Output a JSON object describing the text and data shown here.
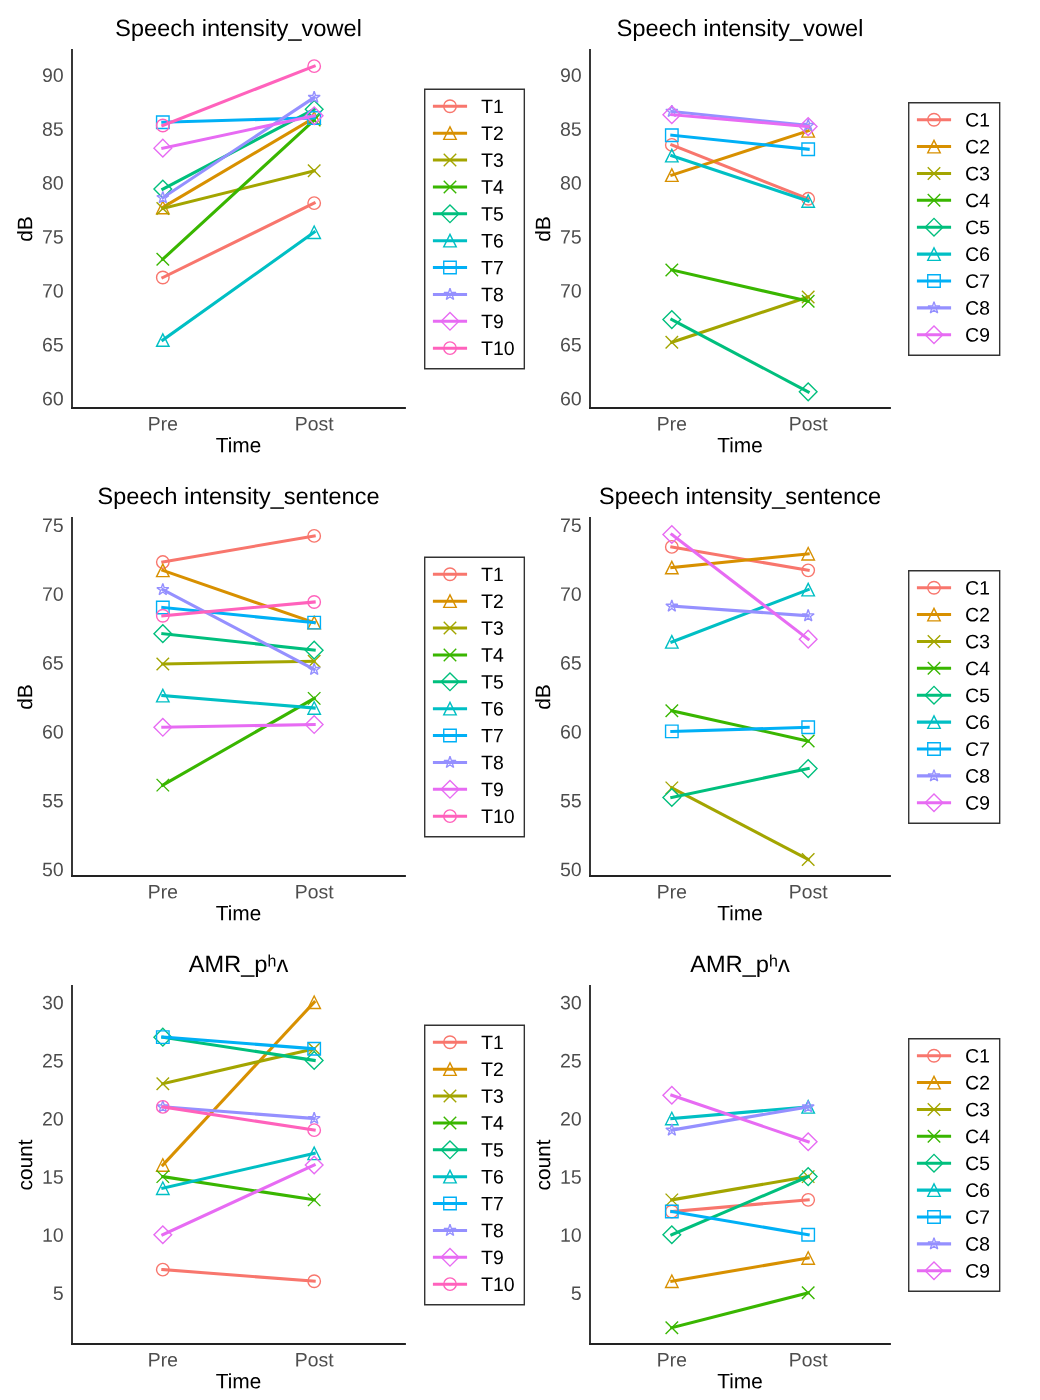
{
  "chart_data": [
    {
      "type": "line",
      "title": "Speech intensity_vowel",
      "xlabel": "Time",
      "ylabel": "dB",
      "categories": [
        "Pre",
        "Post"
      ],
      "ylim": [
        59.1,
        92.3
      ],
      "yticks": [
        60,
        65,
        70,
        75,
        80,
        85,
        90
      ],
      "grid": false,
      "legend": "right",
      "line_style": "solid",
      "series": [
        {
          "name": "T1",
          "color": "#f8766d",
          "marker": "circle",
          "values": [
            71.2,
            78.1
          ]
        },
        {
          "name": "T2",
          "color": "#d89000",
          "marker": "triangle",
          "values": [
            77.7,
            86.0
          ]
        },
        {
          "name": "T3",
          "color": "#a3a500",
          "marker": "cross",
          "values": [
            77.6,
            81.1
          ]
        },
        {
          "name": "T4",
          "color": "#39b600",
          "marker": "cross",
          "values": [
            72.9,
            85.8
          ]
        },
        {
          "name": "T5",
          "color": "#00bf7d",
          "marker": "diamond",
          "values": [
            79.4,
            86.8
          ]
        },
        {
          "name": "T6",
          "color": "#00bfc4",
          "marker": "triangle",
          "values": [
            65.4,
            75.4
          ]
        },
        {
          "name": "T7",
          "color": "#00b0f6",
          "marker": "square",
          "values": [
            85.6,
            86.0
          ]
        },
        {
          "name": "T8",
          "color": "#9590ff",
          "marker": "star",
          "values": [
            78.6,
            87.9
          ]
        },
        {
          "name": "T9",
          "color": "#e76bf3",
          "marker": "diamond",
          "values": [
            83.2,
            86.2
          ]
        },
        {
          "name": "T10",
          "color": "#ff62bc",
          "marker": "circle",
          "values": [
            85.3,
            90.8
          ]
        }
      ]
    },
    {
      "type": "line",
      "title": "Speech intensity_vowel",
      "xlabel": "Time",
      "ylabel": "dB",
      "categories": [
        "Pre",
        "Post"
      ],
      "ylim": [
        59.1,
        92.3
      ],
      "yticks": [
        60,
        65,
        70,
        75,
        80,
        85,
        90
      ],
      "grid": false,
      "legend": "right",
      "line_style": "solid",
      "series": [
        {
          "name": "C1",
          "color": "#f8766d",
          "marker": "circle",
          "values": [
            83.5,
            78.5
          ]
        },
        {
          "name": "C2",
          "color": "#d89000",
          "marker": "triangle",
          "values": [
            80.7,
            84.8
          ]
        },
        {
          "name": "C3",
          "color": "#a3a500",
          "marker": "cross",
          "values": [
            65.2,
            69.4
          ]
        },
        {
          "name": "C4",
          "color": "#39b600",
          "marker": "cross",
          "values": [
            71.9,
            69.0
          ]
        },
        {
          "name": "C5",
          "color": "#00bf7d",
          "marker": "diamond",
          "values": [
            67.3,
            60.6
          ]
        },
        {
          "name": "C6",
          "color": "#00bfc4",
          "marker": "triangle",
          "values": [
            82.5,
            78.3
          ]
        },
        {
          "name": "C7",
          "color": "#00b0f6",
          "marker": "square",
          "values": [
            84.4,
            83.1
          ]
        },
        {
          "name": "C8",
          "color": "#9590ff",
          "marker": "star",
          "values": [
            86.6,
            85.3
          ]
        },
        {
          "name": "C9",
          "color": "#e76bf3",
          "marker": "diamond",
          "values": [
            86.3,
            85.2
          ]
        }
      ]
    },
    {
      "type": "line",
      "title": "Speech intensity_sentence",
      "xlabel": "Time",
      "ylabel": "dB",
      "categories": [
        "Pre",
        "Post"
      ],
      "ylim": [
        49.5,
        75.5
      ],
      "yticks": [
        50,
        55,
        60,
        65,
        70,
        75
      ],
      "grid": false,
      "legend": "right",
      "line_style": "solid",
      "series": [
        {
          "name": "T1",
          "color": "#f8766d",
          "marker": "circle",
          "values": [
            72.3,
            74.2
          ]
        },
        {
          "name": "T2",
          "color": "#d89000",
          "marker": "triangle",
          "values": [
            71.7,
            67.9
          ]
        },
        {
          "name": "T3",
          "color": "#a3a500",
          "marker": "cross",
          "values": [
            64.9,
            65.1
          ]
        },
        {
          "name": "T4",
          "color": "#39b600",
          "marker": "cross",
          "values": [
            56.1,
            62.4
          ]
        },
        {
          "name": "T5",
          "color": "#00bf7d",
          "marker": "diamond",
          "values": [
            67.1,
            65.9
          ]
        },
        {
          "name": "T6",
          "color": "#00bfc4",
          "marker": "triangle",
          "values": [
            62.6,
            61.7
          ]
        },
        {
          "name": "T7",
          "color": "#00b0f6",
          "marker": "square",
          "values": [
            69.0,
            67.9
          ]
        },
        {
          "name": "T8",
          "color": "#9590ff",
          "marker": "star",
          "values": [
            70.3,
            64.5
          ]
        },
        {
          "name": "T9",
          "color": "#e76bf3",
          "marker": "diamond",
          "values": [
            60.3,
            60.5
          ]
        },
        {
          "name": "T10",
          "color": "#ff62bc",
          "marker": "circle",
          "values": [
            68.4,
            69.4
          ]
        }
      ]
    },
    {
      "type": "line",
      "title": "Speech intensity_sentence",
      "xlabel": "Time",
      "ylabel": "dB",
      "categories": [
        "Pre",
        "Post"
      ],
      "ylim": [
        49.5,
        75.5
      ],
      "yticks": [
        50,
        55,
        60,
        65,
        70,
        75
      ],
      "grid": false,
      "legend": "right",
      "line_style": "solid",
      "series": [
        {
          "name": "C1",
          "color": "#f8766d",
          "marker": "circle",
          "values": [
            73.4,
            71.7
          ]
        },
        {
          "name": "C2",
          "color": "#d89000",
          "marker": "triangle",
          "values": [
            71.9,
            72.9
          ]
        },
        {
          "name": "C3",
          "color": "#a3a500",
          "marker": "cross",
          "values": [
            55.9,
            50.7
          ]
        },
        {
          "name": "C4",
          "color": "#39b600",
          "marker": "cross",
          "values": [
            61.5,
            59.3
          ]
        },
        {
          "name": "C5",
          "color": "#00bf7d",
          "marker": "diamond",
          "values": [
            55.2,
            57.3
          ]
        },
        {
          "name": "C6",
          "color": "#00bfc4",
          "marker": "triangle",
          "values": [
            66.5,
            70.3
          ]
        },
        {
          "name": "C7",
          "color": "#00b0f6",
          "marker": "square",
          "values": [
            60.0,
            60.3
          ]
        },
        {
          "name": "C8",
          "color": "#9590ff",
          "marker": "star",
          "values": [
            69.1,
            68.4
          ]
        },
        {
          "name": "C9",
          "color": "#e76bf3",
          "marker": "diamond",
          "values": [
            74.3,
            66.7
          ]
        }
      ]
    },
    {
      "type": "line",
      "title": "AMR_pʰʌ",
      "xlabel": "Time",
      "ylabel": "count",
      "categories": [
        "Pre",
        "Post"
      ],
      "ylim": [
        0.6,
        31.4
      ],
      "yticks": [
        5,
        10,
        15,
        20,
        25,
        30
      ],
      "grid": false,
      "legend": "right",
      "line_style": "solid",
      "series": [
        {
          "name": "T1",
          "color": "#f8766d",
          "marker": "circle",
          "values": [
            7,
            6
          ]
        },
        {
          "name": "T2",
          "color": "#d89000",
          "marker": "triangle",
          "values": [
            16,
            30
          ]
        },
        {
          "name": "T3",
          "color": "#a3a500",
          "marker": "cross",
          "values": [
            23,
            26
          ]
        },
        {
          "name": "T4",
          "color": "#39b600",
          "marker": "cross",
          "values": [
            15,
            13
          ]
        },
        {
          "name": "T5",
          "color": "#00bf7d",
          "marker": "diamond",
          "values": [
            27,
            25
          ]
        },
        {
          "name": "T6",
          "color": "#00bfc4",
          "marker": "triangle",
          "values": [
            14,
            17
          ]
        },
        {
          "name": "T7",
          "color": "#00b0f6",
          "marker": "square",
          "values": [
            27,
            26
          ]
        },
        {
          "name": "T8",
          "color": "#9590ff",
          "marker": "star",
          "values": [
            21,
            20
          ]
        },
        {
          "name": "T9",
          "color": "#e76bf3",
          "marker": "diamond",
          "values": [
            10,
            16
          ]
        },
        {
          "name": "T10",
          "color": "#ff62bc",
          "marker": "circle",
          "values": [
            21,
            19
          ]
        }
      ]
    },
    {
      "type": "line",
      "title": "AMR_pʰʌ",
      "xlabel": "Time",
      "ylabel": "count",
      "categories": [
        "Pre",
        "Post"
      ],
      "ylim": [
        0.6,
        31.4
      ],
      "yticks": [
        5,
        10,
        15,
        20,
        25,
        30
      ],
      "grid": false,
      "legend": "right",
      "line_style": "solid",
      "series": [
        {
          "name": "C1",
          "color": "#f8766d",
          "marker": "circle",
          "values": [
            12,
            13
          ]
        },
        {
          "name": "C2",
          "color": "#d89000",
          "marker": "triangle",
          "values": [
            6,
            8
          ]
        },
        {
          "name": "C3",
          "color": "#a3a500",
          "marker": "cross",
          "values": [
            13,
            15
          ]
        },
        {
          "name": "C4",
          "color": "#39b600",
          "marker": "cross",
          "values": [
            2,
            5
          ]
        },
        {
          "name": "C5",
          "color": "#00bf7d",
          "marker": "diamond",
          "values": [
            10,
            15
          ]
        },
        {
          "name": "C6",
          "color": "#00bfc4",
          "marker": "triangle",
          "values": [
            20,
            21
          ]
        },
        {
          "name": "C7",
          "color": "#00b0f6",
          "marker": "square",
          "values": [
            12,
            10
          ]
        },
        {
          "name": "C8",
          "color": "#9590ff",
          "marker": "star",
          "values": [
            19,
            21
          ]
        },
        {
          "name": "C9",
          "color": "#e76bf3",
          "marker": "diamond",
          "values": [
            22,
            18
          ]
        }
      ]
    }
  ]
}
